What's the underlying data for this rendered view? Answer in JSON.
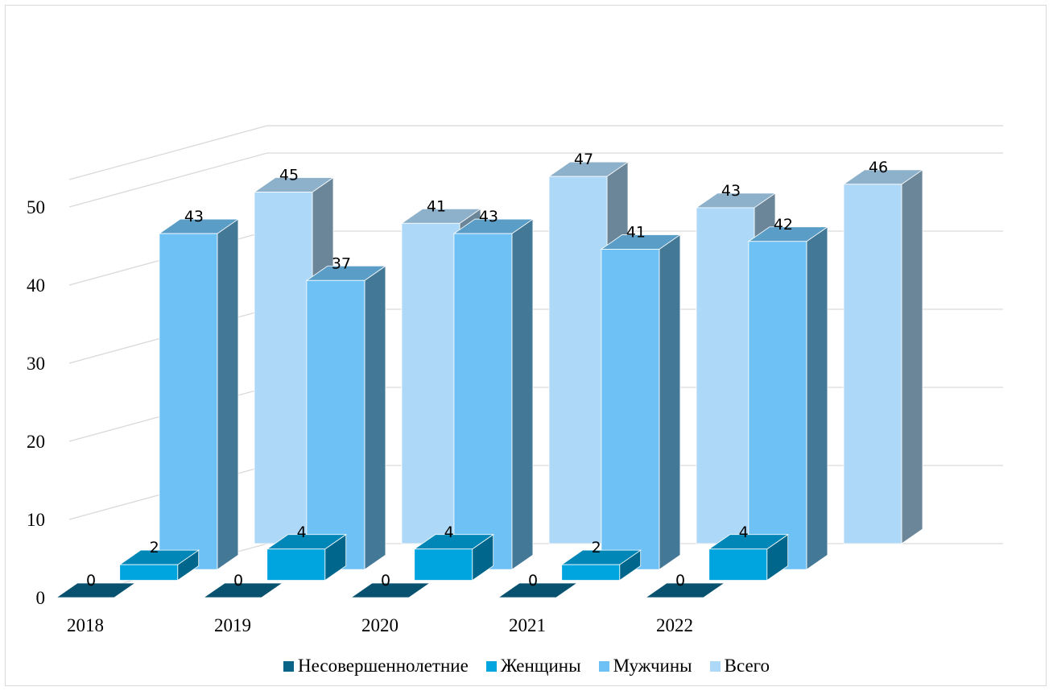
{
  "chart_data": {
    "type": "bar",
    "subtype": "3d-clustered-column",
    "title": "",
    "xlabel": "",
    "ylabel": "",
    "categories": [
      "2018",
      "2019",
      "2020",
      "2021",
      "2022"
    ],
    "y_ticks": [
      "0",
      "10",
      "20",
      "30",
      "40",
      "50"
    ],
    "ylim": [
      0,
      50
    ],
    "grid": true,
    "legend_position": "bottom",
    "series": [
      {
        "name": "Несовершеннолетние",
        "values": [
          0,
          0,
          0,
          0,
          0
        ],
        "value_labels": [
          "0",
          "0",
          "0",
          "0",
          "0"
        ],
        "color": "#0a6488"
      },
      {
        "name": "Женщины",
        "values": [
          2,
          4,
          4,
          2,
          4
        ],
        "value_labels": [
          "2",
          "4",
          "4",
          "2",
          "4"
        ],
        "color": "#00a5e0"
      },
      {
        "name": "Мужчины",
        "values": [
          43,
          37,
          43,
          41,
          42
        ],
        "value_labels": [
          "43",
          "37",
          "43",
          "41",
          "42"
        ],
        "color": "#6ec1f4"
      },
      {
        "name": "Всего",
        "values": [
          45,
          41,
          47,
          43,
          46
        ],
        "value_labels": [
          "45",
          "41",
          "47",
          "43",
          "46"
        ],
        "color": "#add8f7"
      }
    ]
  }
}
